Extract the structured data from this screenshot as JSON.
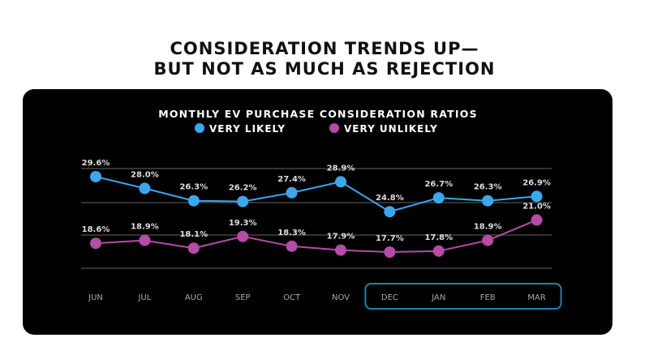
{
  "headline": [
    "CONSIDERATION TRENDS UP—",
    "BUT NOT AS MUCH AS REJECTION"
  ],
  "chart_data": {
    "type": "line",
    "title": "MONTHLY EV PURCHASE CONSIDERATION RATIOS",
    "categories": [
      "JUN",
      "JUL",
      "AUG",
      "SEP",
      "OCT",
      "NOV",
      "DEC",
      "JAN",
      "FEB",
      "MAR"
    ],
    "series": [
      {
        "name": "VERY LIKELY",
        "color": "#3aa8ee",
        "values": [
          29.6,
          28.0,
          26.3,
          26.2,
          27.4,
          28.9,
          24.8,
          26.7,
          26.3,
          26.9
        ]
      },
      {
        "name": "VERY UNLIKELY",
        "color": "#b84aa8",
        "values": [
          18.6,
          18.9,
          18.1,
          19.3,
          18.3,
          17.9,
          17.7,
          17.8,
          18.9,
          21.0
        ]
      }
    ],
    "highlight": {
      "from": "DEC",
      "to": "MAR",
      "color": "#1a86ab"
    },
    "legend": "top-center",
    "grid": true
  }
}
